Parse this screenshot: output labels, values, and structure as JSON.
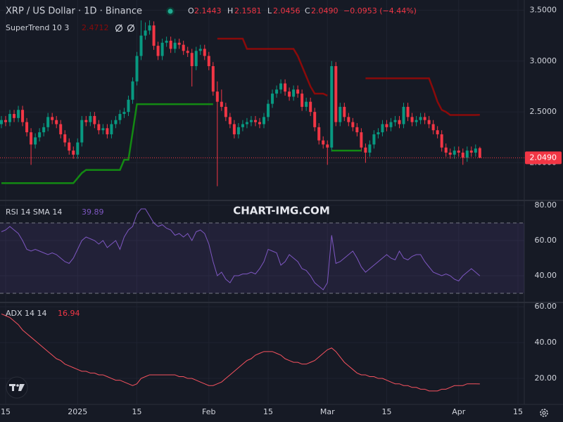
{
  "watermark": "CHART-IMG.COM",
  "chart_data": [
    {
      "type": "candlestick",
      "title": "XRP / US Dollar · 1D · Binance",
      "ohlc_labels": [
        "O",
        "H",
        "L",
        "C"
      ],
      "change_label": "−0.0953 (−4.44%)",
      "close_label": "2.0490",
      "up_color": "#089981",
      "down_color": "#f23645",
      "grid": true,
      "xlim": [
        -0.33,
        123.5
      ],
      "xticks": [
        {
          "value": 1,
          "label": "15"
        },
        {
          "value": 18,
          "label": "2025"
        },
        {
          "value": 32,
          "label": "15"
        },
        {
          "value": 49,
          "label": "Feb"
        },
        {
          "value": 63,
          "label": "15"
        },
        {
          "value": 77,
          "label": "Mar"
        },
        {
          "value": 91,
          "label": "15"
        },
        {
          "value": 108,
          "label": "Apr"
        },
        {
          "value": 122,
          "label": "15"
        }
      ],
      "ylim": [
        1.63,
        3.6
      ],
      "yticks": [
        {
          "value": 3.5,
          "label": "3.5000"
        },
        {
          "value": 3.0,
          "label": "3.0000"
        },
        {
          "value": 2.5,
          "label": "2.5000"
        },
        {
          "value": 2.0,
          "label": "2.0000"
        }
      ],
      "ohlc": [
        [
          2.38,
          2.46,
          2.34,
          2.42
        ],
        [
          2.42,
          2.46,
          2.36,
          2.4
        ],
        [
          2.4,
          2.52,
          2.36,
          2.48
        ],
        [
          2.48,
          2.52,
          2.4,
          2.44
        ],
        [
          2.44,
          2.56,
          2.4,
          2.52
        ],
        [
          2.52,
          2.56,
          2.36,
          2.4
        ],
        [
          2.4,
          2.44,
          2.26,
          2.3
        ],
        [
          2.3,
          2.34,
          1.98,
          2.18
        ],
        [
          2.18,
          2.29,
          2.14,
          2.25
        ],
        [
          2.25,
          2.34,
          2.21,
          2.3
        ],
        [
          2.3,
          2.39,
          2.26,
          2.35
        ],
        [
          2.35,
          2.49,
          2.31,
          2.45
        ],
        [
          2.45,
          2.49,
          2.38,
          2.42
        ],
        [
          2.42,
          2.46,
          2.34,
          2.38
        ],
        [
          2.38,
          2.42,
          2.24,
          2.28
        ],
        [
          2.28,
          2.32,
          2.16,
          2.2
        ],
        [
          2.2,
          2.24,
          2.08,
          2.12
        ],
        [
          2.12,
          2.16,
          2.04,
          2.08
        ],
        [
          2.08,
          2.24,
          2.04,
          2.2
        ],
        [
          2.2,
          2.46,
          2.16,
          2.42
        ],
        [
          2.42,
          2.46,
          2.36,
          2.4
        ],
        [
          2.4,
          2.5,
          2.36,
          2.46
        ],
        [
          2.46,
          2.5,
          2.34,
          2.38
        ],
        [
          2.38,
          2.42,
          2.28,
          2.32
        ],
        [
          2.32,
          2.38,
          2.28,
          2.34
        ],
        [
          2.34,
          2.38,
          2.24,
          2.28
        ],
        [
          2.28,
          2.42,
          2.24,
          2.38
        ],
        [
          2.38,
          2.46,
          2.34,
          2.42
        ],
        [
          2.42,
          2.52,
          2.38,
          2.48
        ],
        [
          2.48,
          2.54,
          2.44,
          2.5
        ],
        [
          2.5,
          2.66,
          2.46,
          2.62
        ],
        [
          2.62,
          2.84,
          2.58,
          2.8
        ],
        [
          2.8,
          3.09,
          2.76,
          3.05
        ],
        [
          3.05,
          3.4,
          3.01,
          3.25
        ],
        [
          3.25,
          3.38,
          3.21,
          3.3
        ],
        [
          3.3,
          3.4,
          3.26,
          3.35
        ],
        [
          3.35,
          3.39,
          3.11,
          3.15
        ],
        [
          3.15,
          3.19,
          3.01,
          3.05
        ],
        [
          3.05,
          3.22,
          3.01,
          3.18
        ],
        [
          3.18,
          3.24,
          3.14,
          3.2
        ],
        [
          3.2,
          3.24,
          3.08,
          3.12
        ],
        [
          3.12,
          3.22,
          3.08,
          3.18
        ],
        [
          3.18,
          3.22,
          3.12,
          3.16
        ],
        [
          3.16,
          3.2,
          3.06,
          3.1
        ],
        [
          3.1,
          3.14,
          3.04,
          3.08
        ],
        [
          3.08,
          3.12,
          2.75,
          2.95
        ],
        [
          2.95,
          3.14,
          2.91,
          3.1
        ],
        [
          3.1,
          3.16,
          3.06,
          3.12
        ],
        [
          3.12,
          3.16,
          3.01,
          3.05
        ],
        [
          3.05,
          3.09,
          2.91,
          2.95
        ],
        [
          2.95,
          2.99,
          2.66,
          2.7
        ],
        [
          2.7,
          2.8,
          1.77,
          2.6
        ],
        [
          2.6,
          2.72,
          2.51,
          2.55
        ],
        [
          2.55,
          2.59,
          2.41,
          2.45
        ],
        [
          2.45,
          2.49,
          2.34,
          2.38
        ],
        [
          2.38,
          2.42,
          2.24,
          2.28
        ],
        [
          2.28,
          2.39,
          2.24,
          2.35
        ],
        [
          2.35,
          2.42,
          2.31,
          2.38
        ],
        [
          2.38,
          2.44,
          2.34,
          2.4
        ],
        [
          2.4,
          2.46,
          2.36,
          2.42
        ],
        [
          2.42,
          2.46,
          2.36,
          2.4
        ],
        [
          2.4,
          2.44,
          2.34,
          2.38
        ],
        [
          2.38,
          2.49,
          2.34,
          2.45
        ],
        [
          2.45,
          2.62,
          2.41,
          2.58
        ],
        [
          2.58,
          2.72,
          2.54,
          2.68
        ],
        [
          2.68,
          2.76,
          2.64,
          2.72
        ],
        [
          2.72,
          2.82,
          2.68,
          2.78
        ],
        [
          2.78,
          2.82,
          2.66,
          2.7
        ],
        [
          2.7,
          2.74,
          2.61,
          2.65
        ],
        [
          2.65,
          2.76,
          2.61,
          2.72
        ],
        [
          2.72,
          2.76,
          2.64,
          2.68
        ],
        [
          2.68,
          2.72,
          2.51,
          2.55
        ],
        [
          2.55,
          2.64,
          2.51,
          2.6
        ],
        [
          2.6,
          2.64,
          2.46,
          2.5
        ],
        [
          2.5,
          2.54,
          2.31,
          2.35
        ],
        [
          2.35,
          2.39,
          2.18,
          2.22
        ],
        [
          2.22,
          2.26,
          2.14,
          2.18
        ],
        [
          2.18,
          2.22,
          1.98,
          2.15
        ],
        [
          2.15,
          3.0,
          2.11,
          2.95
        ],
        [
          2.95,
          2.99,
          2.36,
          2.4
        ],
        [
          2.4,
          2.59,
          2.36,
          2.55
        ],
        [
          2.55,
          2.59,
          2.41,
          2.45
        ],
        [
          2.45,
          2.49,
          2.36,
          2.4
        ],
        [
          2.4,
          2.44,
          2.31,
          2.35
        ],
        [
          2.35,
          2.39,
          2.26,
          2.3
        ],
        [
          2.3,
          2.34,
          2.11,
          2.15
        ],
        [
          2.15,
          2.19,
          2.0,
          2.1
        ],
        [
          2.1,
          2.22,
          2.06,
          2.18
        ],
        [
          2.18,
          2.32,
          2.14,
          2.28
        ],
        [
          2.28,
          2.34,
          2.24,
          2.3
        ],
        [
          2.3,
          2.42,
          2.26,
          2.38
        ],
        [
          2.38,
          2.42,
          2.31,
          2.35
        ],
        [
          2.35,
          2.44,
          2.31,
          2.4
        ],
        [
          2.4,
          2.46,
          2.36,
          2.42
        ],
        [
          2.42,
          2.46,
          2.34,
          2.38
        ],
        [
          2.38,
          2.59,
          2.34,
          2.55
        ],
        [
          2.55,
          2.59,
          2.41,
          2.45
        ],
        [
          2.45,
          2.49,
          2.36,
          2.4
        ],
        [
          2.4,
          2.46,
          2.36,
          2.42
        ],
        [
          2.42,
          2.49,
          2.38,
          2.45
        ],
        [
          2.45,
          2.49,
          2.38,
          2.42
        ],
        [
          2.42,
          2.46,
          2.34,
          2.38
        ],
        [
          2.38,
          2.42,
          2.28,
          2.32
        ],
        [
          2.32,
          2.36,
          2.24,
          2.28
        ],
        [
          2.28,
          2.32,
          2.11,
          2.15
        ],
        [
          2.15,
          2.19,
          2.06,
          2.1
        ],
        [
          2.1,
          2.14,
          2.04,
          2.08
        ],
        [
          2.08,
          2.16,
          2.04,
          2.12
        ],
        [
          2.12,
          2.16,
          2.06,
          2.1
        ],
        [
          2.1,
          2.14,
          1.98,
          2.05
        ],
        [
          2.05,
          2.16,
          2.01,
          2.12
        ],
        [
          2.12,
          2.16,
          2.06,
          2.1
        ],
        [
          2.1,
          2.18,
          2.06,
          2.14
        ],
        [
          2.1443,
          2.1581,
          2.0456,
          2.049
        ]
      ],
      "indicator": {
        "title": "SuperTrend 10 3",
        "series": [
          {
            "color": "#138a13",
            "values": [
              1.8,
              1.8,
              1.8,
              1.8,
              1.8,
              1.8,
              1.8,
              1.8,
              1.8,
              1.8,
              1.8,
              1.8,
              1.8,
              1.8,
              1.8,
              1.8,
              1.8,
              1.8,
              1.85,
              1.9,
              1.93,
              1.93,
              1.93,
              1.93,
              1.93,
              1.93,
              1.93,
              1.93,
              1.93,
              2.03,
              2.03,
              2.3,
              2.576,
              2.576,
              2.576,
              2.576,
              2.576,
              2.576,
              2.576,
              2.576,
              2.576,
              2.576,
              2.576,
              2.576,
              2.576,
              2.576,
              2.576,
              2.576,
              2.576,
              2.576,
              2.576,
              null,
              null,
              null,
              null,
              null,
              null,
              null,
              null,
              null,
              null,
              null,
              null,
              null,
              null,
              null,
              null,
              null,
              null,
              null,
              null,
              null,
              null,
              null,
              null,
              null,
              null,
              null,
              2.12,
              2.12,
              2.12,
              2.12,
              2.12,
              2.12,
              2.12,
              2.12,
              null,
              null,
              null,
              null,
              null,
              null,
              null,
              null,
              null,
              null,
              null,
              null,
              null,
              null,
              null,
              null,
              null,
              null,
              null,
              null,
              null,
              null,
              null,
              null,
              null,
              null,
              null,
              null
            ]
          },
          {
            "color": "#8b0a0a",
            "values": [
              null,
              null,
              null,
              null,
              null,
              null,
              null,
              null,
              null,
              null,
              null,
              null,
              null,
              null,
              null,
              null,
              null,
              null,
              null,
              null,
              null,
              null,
              null,
              null,
              null,
              null,
              null,
              null,
              null,
              null,
              null,
              null,
              null,
              null,
              null,
              null,
              null,
              null,
              null,
              null,
              null,
              null,
              null,
              null,
              null,
              null,
              null,
              null,
              null,
              null,
              null,
              3.22,
              3.22,
              3.22,
              3.22,
              3.22,
              3.22,
              3.22,
              3.12,
              3.12,
              3.12,
              3.12,
              3.12,
              3.12,
              3.12,
              3.12,
              3.12,
              3.12,
              3.12,
              3.12,
              3.05,
              2.95,
              2.85,
              2.75,
              2.68,
              2.68,
              2.68,
              2.66,
              null,
              null,
              null,
              null,
              null,
              null,
              null,
              null,
              2.83,
              2.83,
              2.83,
              2.83,
              2.83,
              2.83,
              2.83,
              2.83,
              2.83,
              2.83,
              2.83,
              2.83,
              2.83,
              2.83,
              2.83,
              2.83,
              2.72,
              2.6,
              2.52,
              2.5,
              2.47,
              2.47,
              2.47,
              2.47,
              2.47,
              2.47,
              2.47,
              2.4712
            ]
          }
        ]
      }
    },
    {
      "type": "line",
      "title": "RSI 14 SMA 14",
      "color": "#7e57c2",
      "ylim": [
        24.8,
        82.8
      ],
      "yticks": [
        {
          "value": 80,
          "label": "80.00"
        },
        {
          "value": 60,
          "label": "60.00"
        },
        {
          "value": 40,
          "label": "40.00"
        }
      ],
      "band": [
        30,
        70
      ],
      "values": [
        65,
        66,
        68,
        66,
        64,
        60,
        55,
        54,
        55,
        54,
        53,
        52,
        53,
        52,
        50,
        48,
        47,
        50,
        55,
        60,
        62,
        61,
        60,
        58,
        60,
        56,
        58,
        60,
        55,
        62,
        66,
        68,
        75,
        78,
        78,
        74,
        70,
        68,
        69,
        67,
        66,
        63,
        64,
        62,
        64,
        60,
        65,
        66,
        64,
        58,
        48,
        40,
        42,
        38,
        36,
        40,
        40,
        41,
        41,
        42,
        41,
        44,
        48,
        55,
        54,
        53,
        46,
        48,
        52,
        50,
        48,
        44,
        43,
        40,
        36,
        34,
        32,
        36,
        63,
        47,
        48,
        50,
        52,
        54,
        50,
        45,
        42,
        44,
        46,
        48,
        50,
        52,
        50,
        49,
        54,
        50,
        49,
        51,
        52,
        52,
        48,
        45,
        42,
        41,
        40,
        41,
        40,
        38,
        37,
        40,
        42,
        44,
        42,
        39.89
      ]
    },
    {
      "type": "line",
      "title": "ADX 14 14",
      "color": "#f7525f",
      "ylim": [
        5.5,
        62.4
      ],
      "yticks": [
        {
          "value": 60,
          "label": "60.00"
        },
        {
          "value": 40,
          "label": "40.00"
        },
        {
          "value": 20,
          "label": "20.00"
        }
      ],
      "values": [
        56,
        55,
        54,
        52,
        50,
        47,
        45,
        43,
        41,
        39,
        37,
        35,
        33,
        31,
        30,
        28,
        27,
        26,
        25,
        24,
        24,
        23,
        23,
        22,
        22,
        21,
        20,
        19,
        19,
        18,
        17,
        16,
        17,
        20,
        21,
        22,
        22,
        22,
        22,
        22,
        22,
        22,
        21,
        21,
        20,
        20,
        19,
        18,
        17,
        16,
        16,
        17,
        18,
        20,
        22,
        24,
        26,
        28,
        30,
        31,
        33,
        34,
        35,
        35,
        35,
        34,
        33,
        31,
        30,
        29,
        29,
        28,
        28,
        29,
        30,
        32,
        34,
        36,
        37,
        35,
        32,
        29,
        27,
        25,
        23,
        22,
        22,
        21,
        21,
        20,
        20,
        19,
        18,
        17,
        17,
        16,
        16,
        15,
        15,
        14,
        14,
        13,
        13,
        13,
        14,
        14,
        15,
        16,
        16,
        16,
        17,
        17,
        17,
        16.94
      ]
    }
  ]
}
